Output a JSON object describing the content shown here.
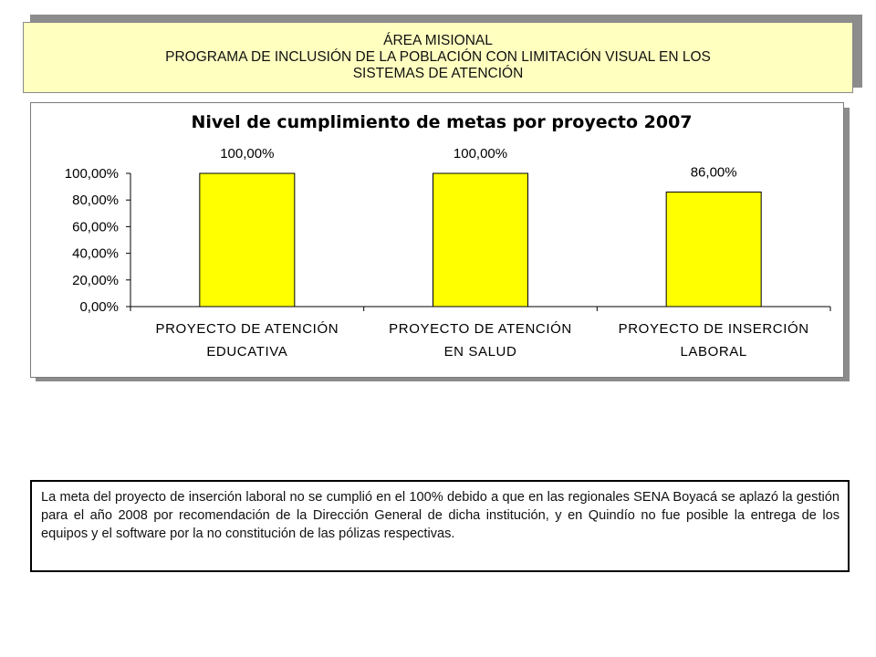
{
  "header": {
    "line1": "ÁREA MISIONAL",
    "line2": "PROGRAMA DE INCLUSIÓN DE  LA POBLACIÓN CON LIMITACIÓN VISUAL EN LOS",
    "line3": "SISTEMAS DE ATENCIÓN"
  },
  "chart_data": {
    "type": "bar",
    "title": "Nivel de cumplimiento de metas por proyecto 2007",
    "categories": [
      [
        "PROYECTO DE ATENCIÓN",
        "EDUCATIVA"
      ],
      [
        "PROYECTO DE ATENCIÓN",
        "EN SALUD"
      ],
      [
        "PROYECTO DE INSERCIÓN",
        "LABORAL"
      ]
    ],
    "values": [
      100,
      100,
      86
    ],
    "data_labels": [
      "100,00%",
      "100,00%",
      "86,00%"
    ],
    "yticks": [
      0,
      20,
      40,
      60,
      80,
      100
    ],
    "ytick_labels": [
      "0,00%",
      "20,00%",
      "40,00%",
      "60,00%",
      "80,00%",
      "100,00%"
    ],
    "ylim": [
      0,
      100
    ],
    "bar_color": "#ffff00",
    "grid": false,
    "legend": false
  },
  "note": {
    "text": "La meta del proyecto de inserción laboral no se cumplió en el 100% debido a que en las regionales SENA Boyacá se aplazó la gestión para el año 2008 por recomendación de la Dirección General de dicha institución, y en Quindío no fue posible la entrega de los equipos y el software por la no constitución de las pólizas respectivas."
  }
}
